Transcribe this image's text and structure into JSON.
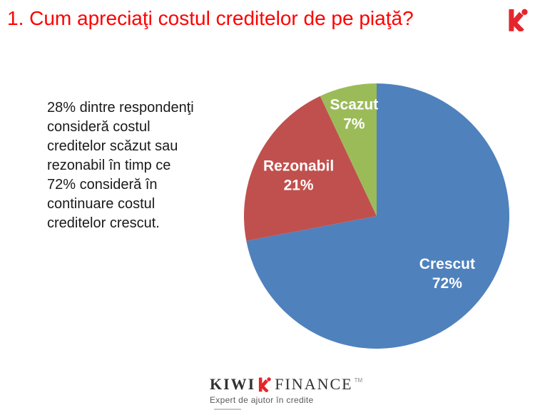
{
  "header": {
    "title": "1. Cum apreciaţi costul creditelor de pe piaţă?",
    "title_color": "#fe0000"
  },
  "summary": {
    "text": "28% dintre respondenţi\nconsideră costul\ncreditelor scăzut sau\nrezonabil în timp ce\n72% consideră în\ncontinuare costul\ncreditelor crescut."
  },
  "chart_data": {
    "type": "pie",
    "title": "",
    "labels": [
      "Crescut",
      "Rezonabil",
      "Scazut"
    ],
    "values": [
      72,
      21,
      7
    ],
    "value_labels": [
      "72%",
      "21%",
      "7%"
    ],
    "colors": [
      "#4f81bd",
      "#c0504d",
      "#9bbb59"
    ],
    "label_color": "#ffffff",
    "start_angle_deg": 0,
    "direction": "clockwise",
    "legend_position": "none",
    "label_radius_factors": [
      0.69,
      0.66,
      0.78
    ]
  },
  "branding": {
    "logo_color": "#e4262c",
    "footer": {
      "kiwi": "KIWI",
      "finance": "FINANCE",
      "trademark": "TM",
      "tagline": "Expert de ajutor în credite"
    }
  }
}
